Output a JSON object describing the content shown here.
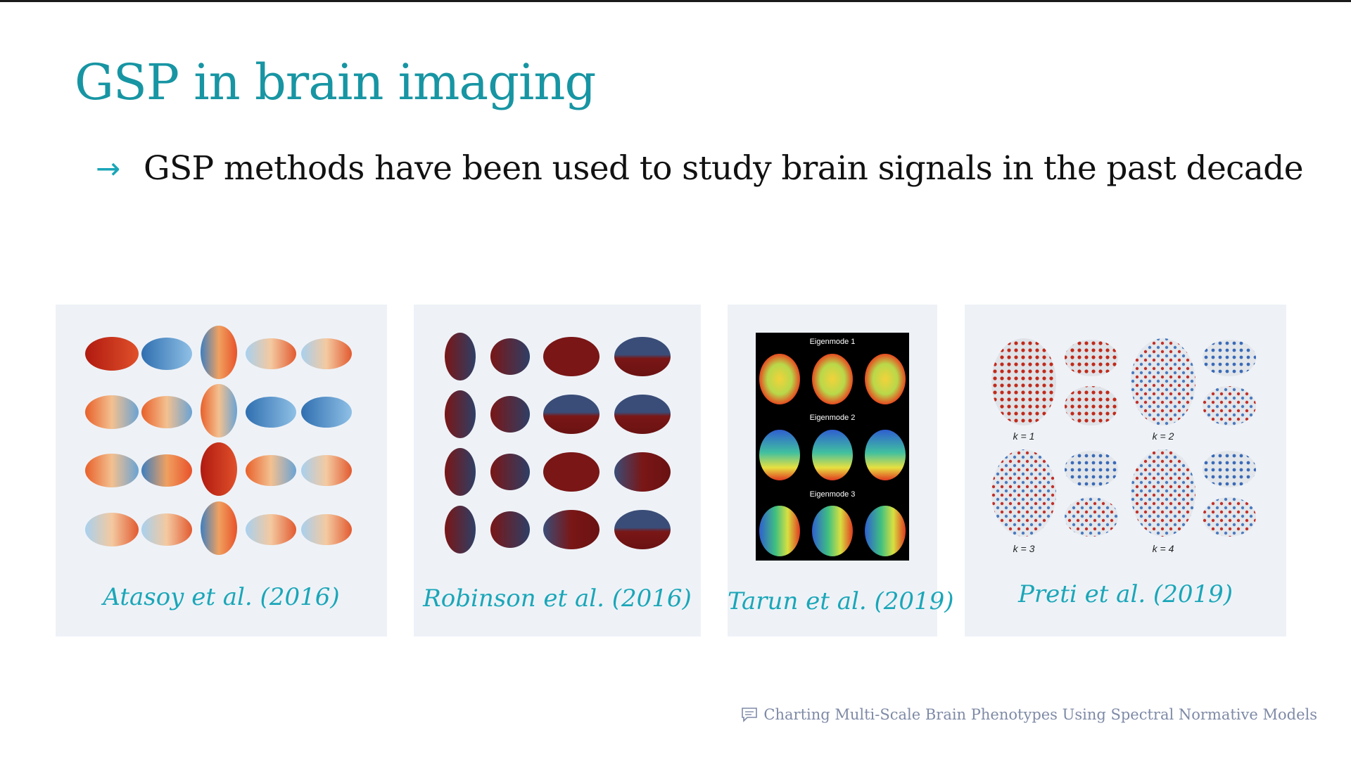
{
  "slide": {
    "title": "GSP in brain imaging",
    "bullet_arrow": "→",
    "bullet_text": "GSP methods have been used to study brain signals in the past decade"
  },
  "cards": [
    {
      "caption": "Atasoy et al. (2016)"
    },
    {
      "caption": "Robinson et al. (2016)"
    },
    {
      "caption": "Tarun et al. (2019)",
      "mode_labels": [
        "Eigenmode 1",
        "Eigenmode 2",
        "Eigenmode 3"
      ]
    },
    {
      "caption": "Preti et al. (2019)",
      "k_labels": [
        "k = 1",
        "k = 2",
        "k = 3",
        "k = 4"
      ]
    }
  ],
  "footer": {
    "icon": "comment-icon",
    "text": "Charting Multi-Scale Brain Phenotypes Using Spectral Normative Models"
  },
  "colors": {
    "title": "#1795a3",
    "accent": "#1aa6b8",
    "card_bg": "#eef2f7",
    "footer": "#7e8aa6"
  }
}
